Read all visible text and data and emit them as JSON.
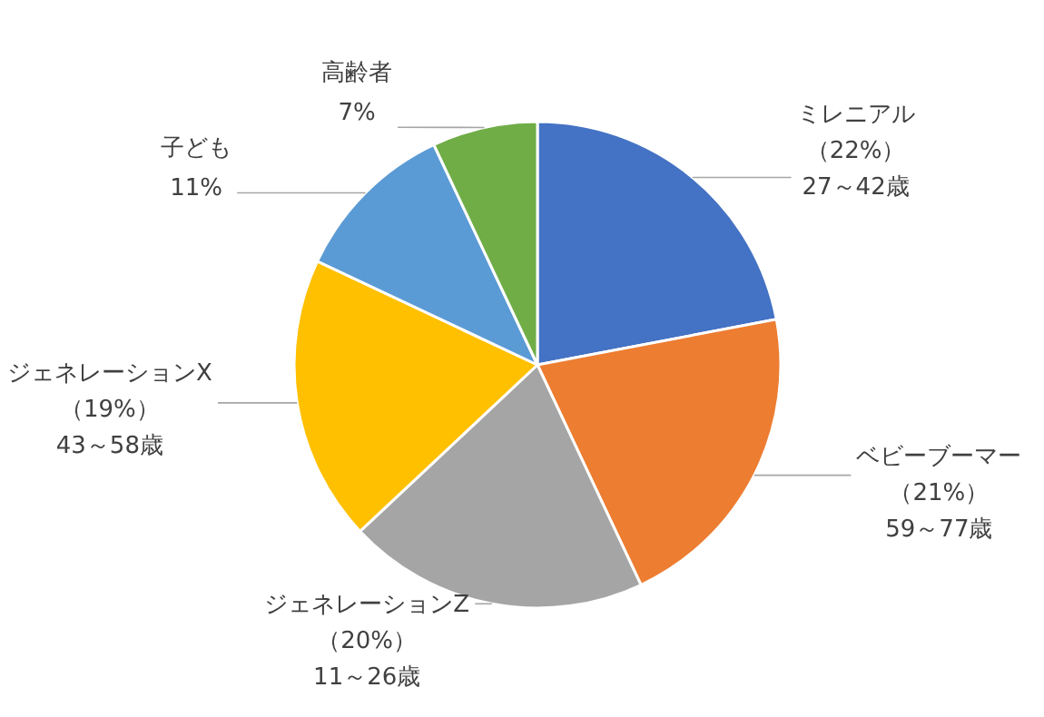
{
  "chart_data": {
    "type": "pie",
    "categories": [
      "ミレニアル",
      "ベビーブーマー",
      "ジェネレーションZ",
      "ジェネレーションX",
      "子ども",
      "高齢者"
    ],
    "values": [
      22,
      21,
      20,
      19,
      11,
      7
    ],
    "colors": [
      "#4472c4",
      "#ed7d31",
      "#a5a5a5",
      "#ffc000",
      "#5b9bd5",
      "#70ad47"
    ],
    "value_labels": [
      "（22%）\n27～42歳",
      "（21%）\n59～77歳",
      "（20%）\n11～26歳",
      "（19%）\n43～58歳",
      "11%",
      "7%"
    ],
    "legend": false
  }
}
